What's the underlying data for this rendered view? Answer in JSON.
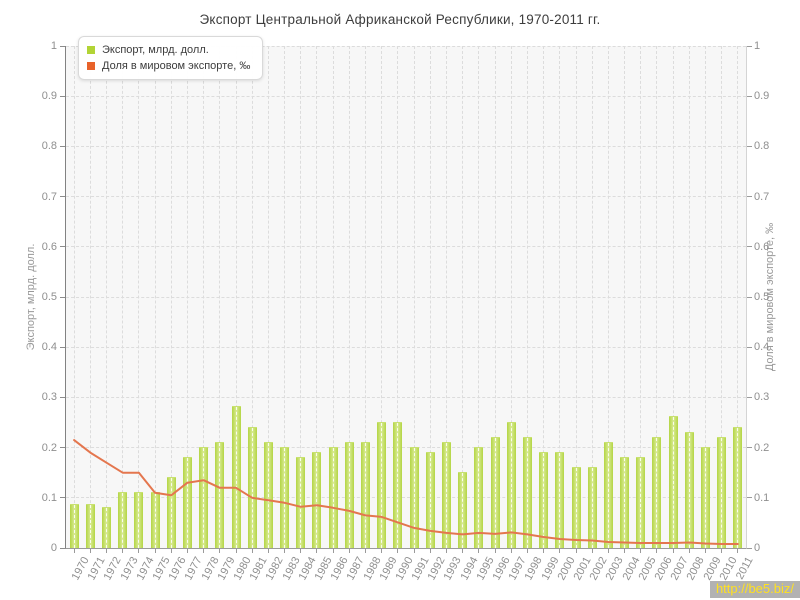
{
  "title": "Экспорт Центральной Африканской Республики, 1970-2011 гг.",
  "watermark": "http://be5.biz/",
  "legend": [
    {
      "label": "Экспорт, млрд. долл.",
      "color": "#b2d435"
    },
    {
      "label": "Доля в мировом экспорте, ‰",
      "color": "#e8622a"
    }
  ],
  "chart_data": {
    "type": "bar+line",
    "title": "Экспорт Центральной Африканской Республики, 1970-2011 гг.",
    "categories": [
      "1970",
      "1971",
      "1972",
      "1973",
      "1974",
      "1975",
      "1976",
      "1977",
      "1978",
      "1979",
      "1980",
      "1981",
      "1982",
      "1983",
      "1984",
      "1985",
      "1986",
      "1987",
      "1988",
      "1989",
      "1990",
      "1991",
      "1992",
      "1993",
      "1994",
      "1995",
      "1996",
      "1997",
      "1998",
      "1999",
      "2000",
      "2001",
      "2002",
      "2003",
      "2004",
      "2005",
      "2006",
      "2007",
      "2008",
      "2009",
      "2010",
      "2011"
    ],
    "series": [
      {
        "name": "Экспорт, млрд. долл.",
        "type": "bar",
        "color": "#c2de62",
        "values": [
          0.085,
          0.085,
          0.08,
          0.11,
          0.11,
          0.11,
          0.14,
          0.18,
          0.2,
          0.21,
          0.28,
          0.24,
          0.21,
          0.2,
          0.18,
          0.19,
          0.2,
          0.21,
          0.21,
          0.25,
          0.25,
          0.2,
          0.19,
          0.21,
          0.15,
          0.2,
          0.22,
          0.25,
          0.22,
          0.19,
          0.19,
          0.16,
          0.16,
          0.21,
          0.18,
          0.18,
          0.22,
          0.26,
          0.23,
          0.2,
          0.22,
          0.24
        ]
      },
      {
        "name": "Доля в мировом экспорте, ‰",
        "type": "line",
        "color": "#e4764e",
        "values": [
          0.215,
          0.19,
          0.17,
          0.15,
          0.15,
          0.11,
          0.105,
          0.13,
          0.135,
          0.12,
          0.12,
          0.1,
          0.095,
          0.09,
          0.082,
          0.085,
          0.08,
          0.074,
          0.065,
          0.062,
          0.051,
          0.04,
          0.034,
          0.03,
          0.027,
          0.03,
          0.028,
          0.031,
          0.027,
          0.022,
          0.018,
          0.016,
          0.015,
          0.012,
          0.011,
          0.01,
          0.01,
          0.01,
          0.011,
          0.009,
          0.008,
          0.008
        ]
      }
    ],
    "y_left": {
      "label": "Экспорт, млрд. долл.",
      "min": 0,
      "max": 1,
      "step": 0.1
    },
    "y_right": {
      "label": "Доля в мировом экспорте, ‰",
      "min": 0,
      "max": 1,
      "step": 0.1
    },
    "y_ticks": [
      "0",
      "0.1",
      "0.2",
      "0.3",
      "0.4",
      "0.5",
      "0.6",
      "0.7",
      "0.8",
      "0.9",
      "1"
    ],
    "grid": true,
    "legend_position": "top-left"
  }
}
